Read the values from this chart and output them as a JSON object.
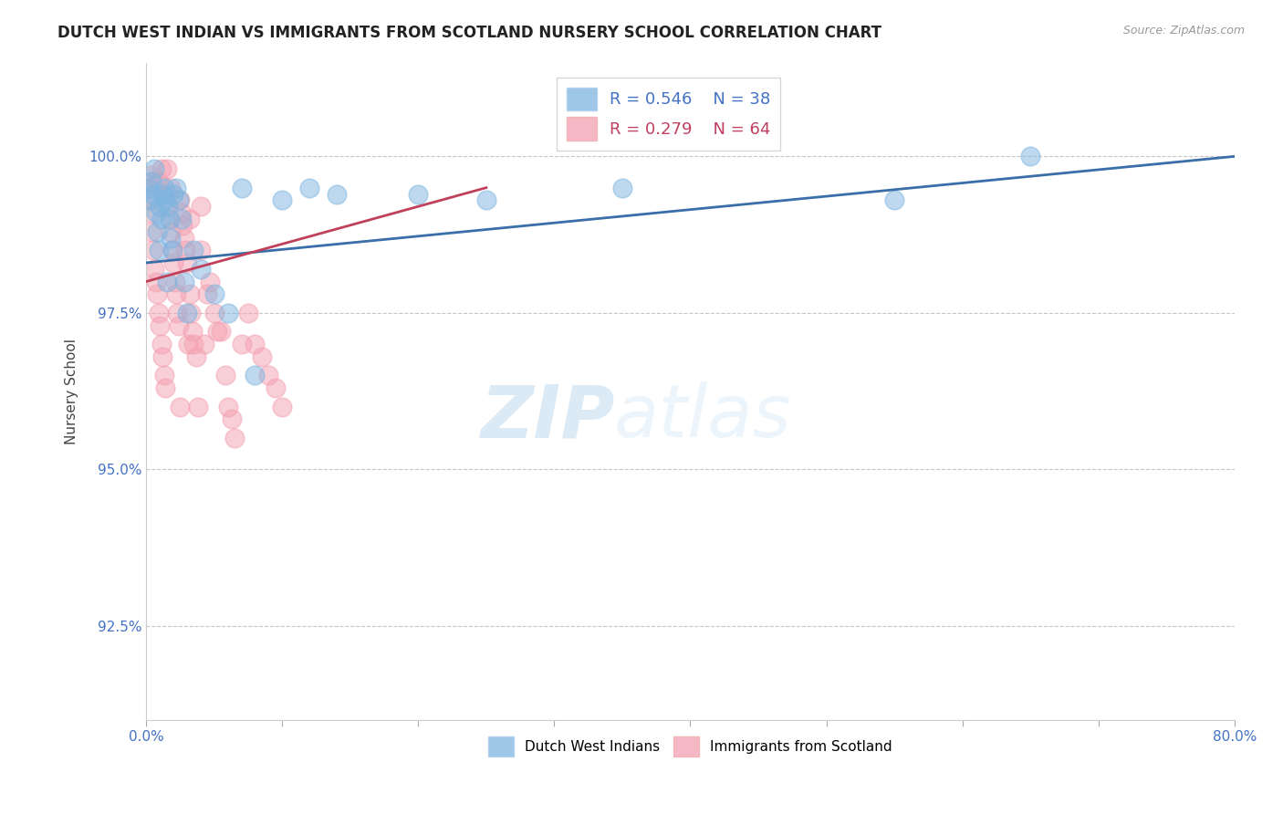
{
  "title": "DUTCH WEST INDIAN VS IMMIGRANTS FROM SCOTLAND NURSERY SCHOOL CORRELATION CHART",
  "source": "Source: ZipAtlas.com",
  "ylabel": "Nursery School",
  "xlim": [
    0.0,
    80.0
  ],
  "ylim": [
    91.0,
    101.5
  ],
  "xticks": [
    0.0,
    10.0,
    20.0,
    30.0,
    40.0,
    50.0,
    60.0,
    70.0,
    80.0
  ],
  "yticks": [
    92.5,
    95.0,
    97.5,
    100.0
  ],
  "legend_R_blue": "R = 0.546",
  "legend_N_blue": "N = 38",
  "legend_R_pink": "R = 0.279",
  "legend_N_pink": "N = 64",
  "legend_label_blue": "Dutch West Indians",
  "legend_label_pink": "Immigrants from Scotland",
  "blue_color": "#7eb5e0",
  "pink_color": "#f4a0b0",
  "trendline_blue_color": "#3a6ea8",
  "trendline_pink_color": "#c0405a",
  "watermark_zip": "ZIP",
  "watermark_atlas": "atlas",
  "blue_scatter_x": [
    0.2,
    0.3,
    0.4,
    0.5,
    0.6,
    0.7,
    0.8,
    0.9,
    1.0,
    1.1,
    1.2,
    1.3,
    1.4,
    1.5,
    1.6,
    1.7,
    1.8,
    1.9,
    2.0,
    2.2,
    2.4,
    2.6,
    2.8,
    3.0,
    3.5,
    4.0,
    5.0,
    6.0,
    7.0,
    8.0,
    10.0,
    12.0,
    14.0,
    20.0,
    25.0,
    35.0,
    55.0,
    65.0
  ],
  "blue_scatter_y": [
    99.5,
    99.3,
    99.6,
    99.4,
    99.8,
    99.1,
    98.8,
    98.5,
    99.2,
    99.0,
    99.4,
    99.5,
    99.3,
    98.0,
    99.2,
    99.0,
    98.7,
    98.5,
    99.4,
    99.5,
    99.3,
    99.0,
    98.0,
    97.5,
    98.5,
    98.2,
    97.8,
    97.5,
    99.5,
    96.5,
    99.3,
    99.5,
    99.4,
    99.4,
    99.3,
    99.5,
    99.3,
    100.0
  ],
  "pink_scatter_x": [
    0.1,
    0.2,
    0.3,
    0.4,
    0.5,
    0.6,
    0.7,
    0.8,
    0.9,
    1.0,
    1.1,
    1.2,
    1.3,
    1.4,
    1.5,
    1.6,
    1.7,
    1.8,
    1.9,
    2.0,
    2.1,
    2.2,
    2.3,
    2.4,
    2.5,
    2.6,
    2.7,
    2.8,
    2.9,
    3.0,
    3.1,
    3.2,
    3.3,
    3.4,
    3.5,
    3.7,
    4.0,
    4.3,
    4.7,
    5.0,
    5.5,
    6.0,
    6.5,
    7.0,
    7.5,
    8.0,
    8.5,
    9.0,
    9.5,
    10.0,
    3.8,
    4.5,
    5.2,
    5.8,
    6.3,
    0.5,
    1.1,
    1.8,
    2.5,
    3.2,
    4.0,
    0.3,
    0.9,
    1.5
  ],
  "pink_scatter_y": [
    99.5,
    99.3,
    99.1,
    98.8,
    98.5,
    98.2,
    98.0,
    97.8,
    97.5,
    97.3,
    97.0,
    96.8,
    96.5,
    96.3,
    99.4,
    99.2,
    99.0,
    98.8,
    98.5,
    98.3,
    98.0,
    97.8,
    97.5,
    97.3,
    96.0,
    99.1,
    98.9,
    98.7,
    98.5,
    98.3,
    97.0,
    97.8,
    97.5,
    97.2,
    97.0,
    96.8,
    98.5,
    97.0,
    98.0,
    97.5,
    97.2,
    96.0,
    95.5,
    97.0,
    97.5,
    97.0,
    96.8,
    96.5,
    96.3,
    96.0,
    96.0,
    97.8,
    97.2,
    96.5,
    95.8,
    99.6,
    99.8,
    99.5,
    99.3,
    99.0,
    99.2,
    99.7,
    99.6,
    99.8
  ],
  "trendline_blue_x0": 0.0,
  "trendline_blue_y0": 98.3,
  "trendline_blue_x1": 80.0,
  "trendline_blue_y1": 100.0,
  "trendline_pink_x0": 0.0,
  "trendline_pink_y0": 98.0,
  "trendline_pink_x1": 25.0,
  "trendline_pink_y1": 99.5
}
